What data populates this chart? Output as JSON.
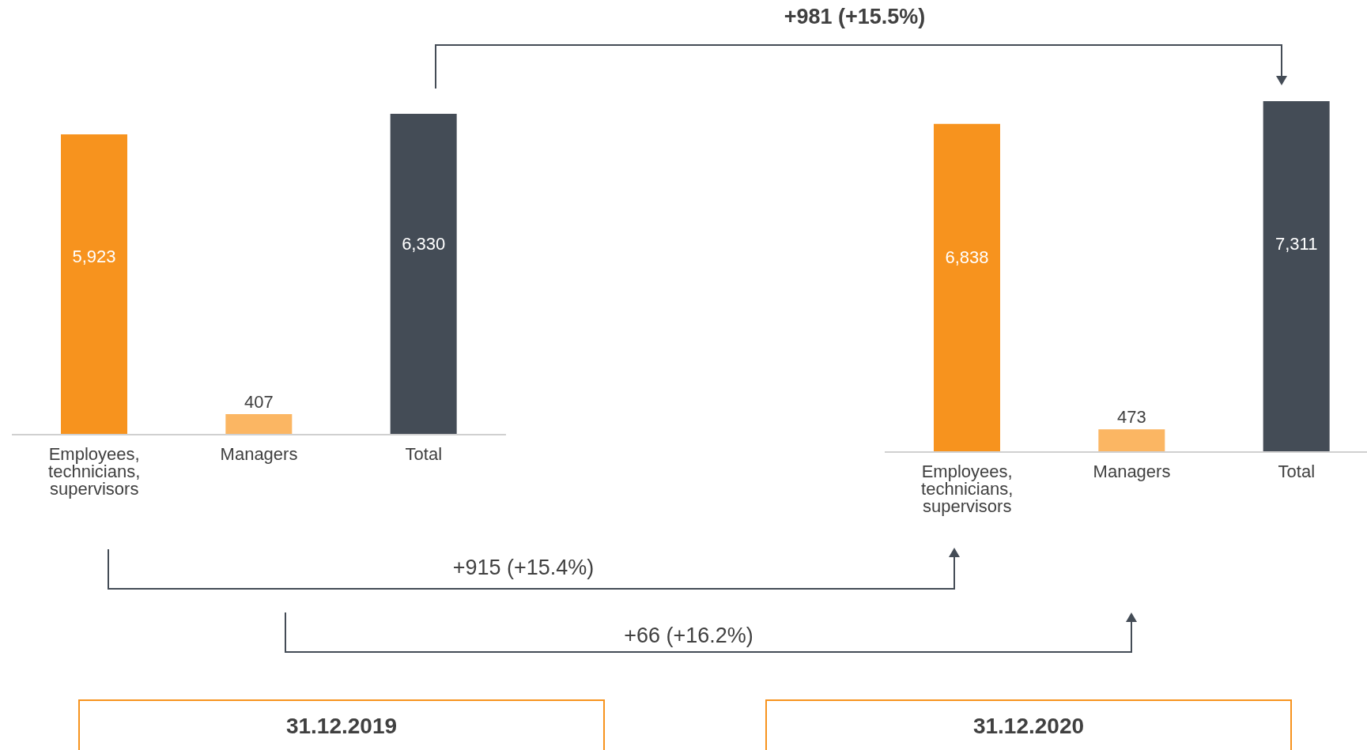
{
  "chart_data": [
    {
      "type": "bar",
      "title": "31.12.2019",
      "categories": [
        "Employees, technicians, supervisors",
        "Managers",
        "Total"
      ],
      "values": [
        5923,
        407,
        6330
      ],
      "value_labels": [
        "5,923",
        "407",
        "6,330"
      ],
      "colors": [
        "#f7931e",
        "#fbb663",
        "#444c56"
      ],
      "annotations": [
        "+981 (+15.5%)",
        "+915 (+15.4%)",
        "+66 (+16.2%)"
      ]
    },
    {
      "type": "bar",
      "title": "31.12.2020",
      "categories": [
        "Employees, technicians, supervisors",
        "Managers",
        "Total"
      ],
      "values": [
        6838,
        473,
        7311
      ],
      "value_labels": [
        "6,838",
        "473",
        "7,311"
      ],
      "colors": [
        "#f7931e",
        "#fbb663",
        "#444c56"
      ]
    }
  ]
}
